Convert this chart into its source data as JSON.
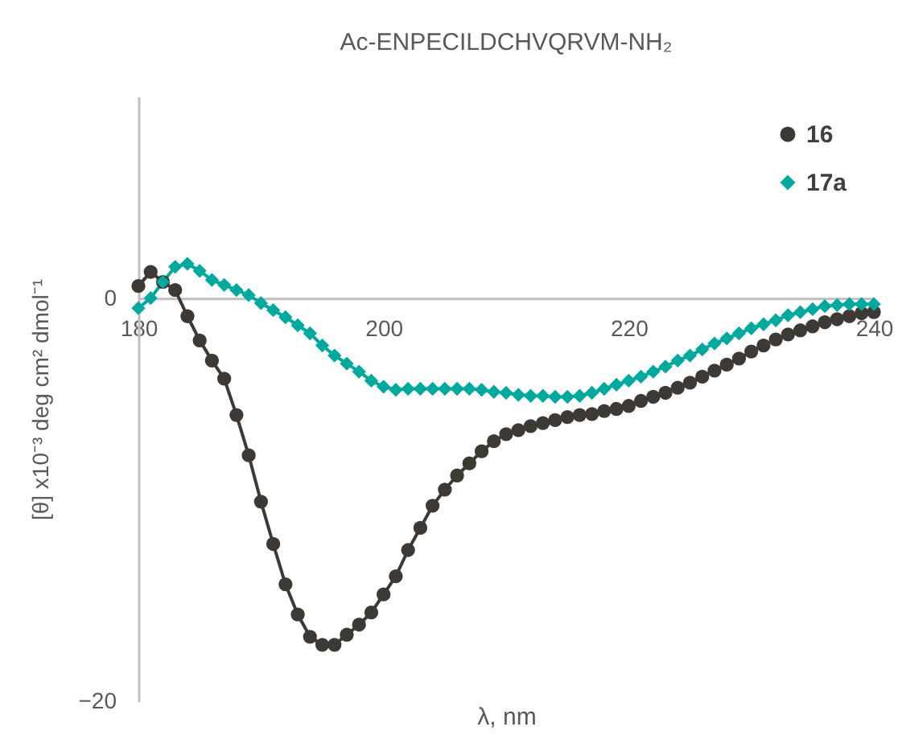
{
  "chart_data": {
    "type": "line",
    "title": "Ac-ENPECILDCHVQRVM-NH₂",
    "xlabel": "λ, nm",
    "ylabel": "[θ] x10⁻³ deg cm² dmol⁻¹",
    "x": [
      180,
      181,
      182,
      183,
      184,
      185,
      186,
      187,
      188,
      189,
      190,
      191,
      192,
      193,
      194,
      195,
      196,
      197,
      198,
      199,
      200,
      201,
      202,
      203,
      204,
      205,
      206,
      207,
      208,
      209,
      210,
      211,
      212,
      213,
      214,
      215,
      216,
      217,
      218,
      219,
      220,
      221,
      222,
      223,
      224,
      225,
      226,
      227,
      228,
      229,
      230,
      231,
      232,
      233,
      234,
      235,
      236,
      237,
      238,
      239,
      240
    ],
    "series": [
      {
        "name": "16",
        "color": "#3d3935",
        "marker": "circle",
        "values": [
          0.6,
          1.3,
          0.8,
          0.4,
          -0.9,
          -2.1,
          -3.1,
          -4.0,
          -5.8,
          -7.8,
          -10.1,
          -12.2,
          -14.2,
          -15.7,
          -16.8,
          -17.2,
          -17.2,
          -16.7,
          -16.2,
          -15.6,
          -14.7,
          -13.8,
          -12.5,
          -11.4,
          -10.3,
          -9.5,
          -8.8,
          -8.2,
          -7.6,
          -7.1,
          -6.75,
          -6.55,
          -6.35,
          -6.2,
          -6.05,
          -5.9,
          -5.8,
          -5.75,
          -5.6,
          -5.5,
          -5.35,
          -5.1,
          -4.9,
          -4.7,
          -4.45,
          -4.2,
          -3.9,
          -3.6,
          -3.3,
          -3.0,
          -2.65,
          -2.35,
          -2.05,
          -1.8,
          -1.6,
          -1.4,
          -1.2,
          -1.05,
          -0.9,
          -0.75,
          -0.7
        ]
      },
      {
        "name": "17a",
        "color": "#00a99d",
        "marker": "diamond",
        "values": [
          -0.5,
          0.0,
          0.8,
          1.55,
          1.7,
          1.35,
          0.9,
          0.65,
          0.4,
          0.15,
          -0.25,
          -0.6,
          -0.95,
          -1.35,
          -1.75,
          -2.35,
          -2.85,
          -3.25,
          -3.65,
          -4.1,
          -4.4,
          -4.55,
          -4.5,
          -4.5,
          -4.5,
          -4.5,
          -4.5,
          -4.5,
          -4.55,
          -4.65,
          -4.7,
          -4.8,
          -4.85,
          -4.85,
          -4.9,
          -4.9,
          -4.85,
          -4.7,
          -4.5,
          -4.3,
          -4.1,
          -3.9,
          -3.65,
          -3.4,
          -3.1,
          -2.85,
          -2.55,
          -2.25,
          -2.0,
          -1.75,
          -1.5,
          -1.3,
          -1.1,
          -0.85,
          -0.7,
          -0.55,
          -0.4,
          -0.35,
          -0.3,
          -0.3,
          -0.3
        ]
      }
    ],
    "xlim": [
      180,
      240
    ],
    "xticks": [
      180,
      200,
      220,
      240
    ],
    "ylim": [
      -20,
      10
    ],
    "yticks": [
      -20,
      0
    ],
    "legend": "top right"
  }
}
